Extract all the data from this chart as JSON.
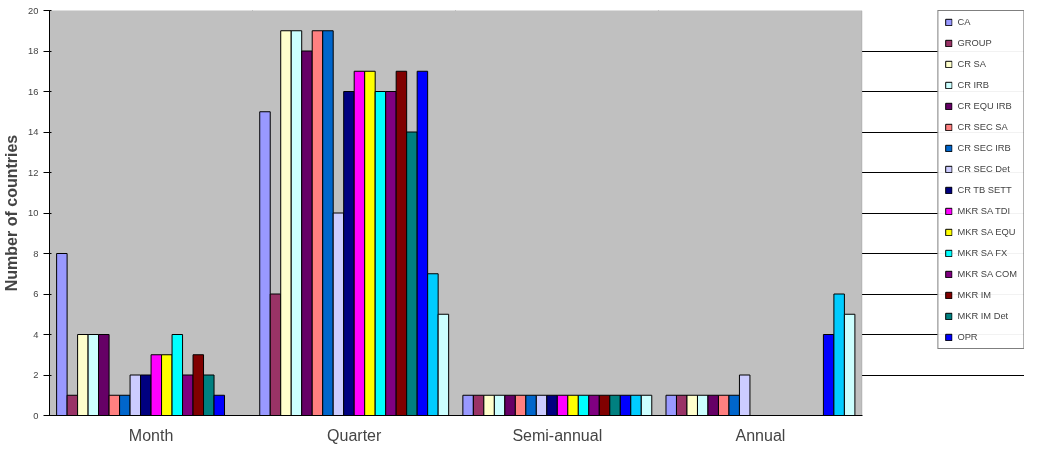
{
  "chart_data": {
    "type": "bar",
    "ylabel": "Number of countries",
    "categories": [
      "Month",
      "Quarter",
      "Semi-annual",
      "Annual"
    ],
    "ylim": [
      0,
      20
    ],
    "yticks": [
      0,
      2,
      4,
      6,
      8,
      10,
      12,
      14,
      16,
      18,
      20
    ],
    "grid": "y",
    "legend": "right",
    "series": [
      {
        "name": "CA",
        "color": "#9999ff",
        "values": [
          8,
          15,
          1,
          1
        ]
      },
      {
        "name": "GROUP",
        "color": "#993366",
        "values": [
          1,
          6,
          1,
          1
        ]
      },
      {
        "name": "CR SA",
        "color": "#ffffcc",
        "values": [
          4,
          19,
          1,
          1
        ]
      },
      {
        "name": "CR IRB",
        "color": "#ccffff",
        "values": [
          4,
          19,
          1,
          1
        ]
      },
      {
        "name": "CR EQU IRB",
        "color": "#660066",
        "values": [
          4,
          18,
          1,
          1
        ]
      },
      {
        "name": "CR SEC SA",
        "color": "#ff8080",
        "values": [
          1,
          19,
          1,
          1
        ]
      },
      {
        "name": "CR SEC IRB",
        "color": "#0066cc",
        "values": [
          1,
          19,
          1,
          1
        ]
      },
      {
        "name": "CR SEC Det",
        "color": "#ccccff",
        "values": [
          2,
          10,
          1,
          2
        ]
      },
      {
        "name": "CR TB SETT",
        "color": "#000080",
        "values": [
          2,
          16,
          1,
          null
        ]
      },
      {
        "name": "MKR SA TDI",
        "color": "#ff00ff",
        "values": [
          3,
          17,
          1,
          null
        ]
      },
      {
        "name": "MKR SA EQU",
        "color": "#ffff00",
        "values": [
          3,
          17,
          1,
          null
        ]
      },
      {
        "name": "MKR SA FX",
        "color": "#00ffff",
        "values": [
          4,
          16,
          1,
          null
        ]
      },
      {
        "name": "MKR SA COM",
        "color": "#800080",
        "values": [
          2,
          16,
          1,
          null
        ]
      },
      {
        "name": "MKR IM",
        "color": "#800000",
        "values": [
          3,
          17,
          1,
          null
        ]
      },
      {
        "name": "MKR IM Det",
        "color": "#008080",
        "values": [
          2,
          14,
          1,
          null
        ]
      },
      {
        "name": "OPR",
        "color": "#0000ff",
        "values": [
          1,
          17,
          1,
          4
        ]
      },
      {
        "color": "#00ccff",
        "values": [
          null,
          7,
          1,
          6
        ]
      },
      {
        "color": "#ccffff",
        "values": [
          null,
          5,
          1,
          5
        ]
      }
    ]
  }
}
